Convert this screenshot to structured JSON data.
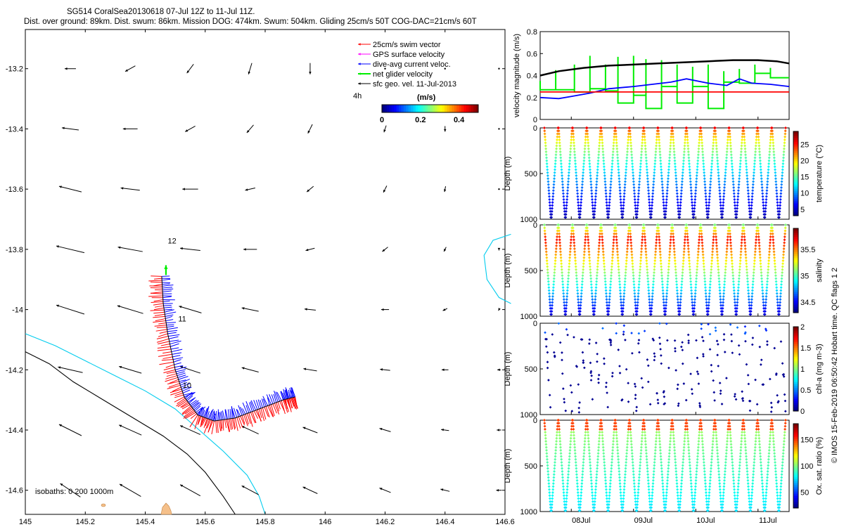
{
  "title": {
    "line1": "SG514 CoralSea20130618 07-Jul 12Z to 11-Jul 11Z.",
    "line2": "Dist. over ground: 89km. Dist. swum: 86km. Mission DOG: 474km. Swum: 504km. Gliding 25cm/s 50T COG-DAC=21cm/s 60T"
  },
  "credit": "© IMOS 15-Feb-2019 06:50:42 Hobart time. QC flags 1  2",
  "colors": {
    "swim": "#ff0000",
    "gps": "#ff00ff",
    "dac": "#0000ff",
    "net": "#00ee00",
    "geo": "#000000",
    "isobath_200": "#00ccee",
    "isobath_1000": "#000000",
    "land": "#f5c08a"
  },
  "chart_data": [
    {
      "type": "scatter",
      "panel": "map",
      "xlim": [
        145,
        146.6
      ],
      "ylim": [
        -14.68,
        -13.07
      ],
      "xticks": [
        145,
        145.2,
        145.4,
        145.6,
        145.8,
        146,
        146.2,
        146.4,
        146.6
      ],
      "yticks": [
        -13.2,
        -13.4,
        -13.6,
        -13.8,
        -14,
        -14.2,
        -14.4,
        -14.6
      ],
      "legend": {
        "placement": "top-right",
        "entries": [
          "25cm/s swim vector",
          "GPS surface velocity",
          "dive-avg current veloc.",
          "net glider velocity",
          "sfc geo. vel. 11-Jul-2013"
        ]
      },
      "time_label": "4h",
      "colorbar": {
        "label": "(m/s)",
        "ticks": [
          "0",
          "0.2",
          "0.4"
        ],
        "range": [
          0,
          0.5
        ]
      },
      "isobath_label": "isobaths: 0   200  1000m",
      "day_labels": [
        {
          "text": "12",
          "lon": 145.475,
          "lat": -13.78
        },
        {
          "text": "11",
          "lon": 145.51,
          "lat": -14.04
        },
        {
          "text": "10",
          "lon": 145.525,
          "lat": -14.26
        }
      ],
      "track": [
        {
          "lon": 145.455,
          "lat": -13.89
        },
        {
          "lon": 145.46,
          "lat": -13.98
        },
        {
          "lon": 145.475,
          "lat": -14.08
        },
        {
          "lon": 145.5,
          "lat": -14.2
        },
        {
          "lon": 145.53,
          "lat": -14.29
        },
        {
          "lon": 145.575,
          "lat": -14.35
        },
        {
          "lon": 145.63,
          "lat": -14.37
        },
        {
          "lon": 145.7,
          "lat": -14.36
        },
        {
          "lon": 145.78,
          "lat": -14.33
        },
        {
          "lon": 145.86,
          "lat": -14.3
        },
        {
          "lon": 145.9,
          "lat": -14.29
        }
      ],
      "geo_vectors": {
        "lons": [
          145.15,
          145.35,
          145.55,
          145.75,
          145.95,
          146.2,
          146.4,
          146.58
        ],
        "lats": [
          -13.2,
          -13.4,
          -13.6,
          -13.8,
          -14,
          -14.2,
          -14.4,
          -14.6
        ],
        "u": [
          [
            -0.1,
            -0.09,
            -0.06,
            -0.03,
            0,
            0,
            0,
            0
          ],
          [
            -0.15,
            -0.13,
            -0.09,
            -0.06,
            -0.04,
            -0.02,
            0,
            0
          ],
          [
            -0.2,
            -0.17,
            -0.14,
            -0.09,
            -0.06,
            -0.03,
            -0.01,
            0
          ],
          [
            -0.25,
            -0.22,
            -0.18,
            -0.12,
            -0.08,
            -0.05,
            -0.02,
            0
          ],
          [
            -0.25,
            -0.23,
            -0.2,
            -0.15,
            -0.1,
            -0.07,
            -0.04,
            -0.01
          ],
          [
            -0.22,
            -0.2,
            -0.18,
            -0.15,
            -0.12,
            -0.09,
            -0.06,
            -0.03
          ],
          [
            -0.2,
            -0.2,
            -0.18,
            -0.15,
            -0.13,
            -0.1,
            -0.07,
            -0.04
          ],
          [
            -0.18,
            -0.19,
            -0.18,
            -0.15,
            -0.13,
            -0.1,
            -0.08,
            -0.05
          ]
        ],
        "v": [
          [
            0,
            -0.05,
            -0.08,
            -0.1,
            -0.1,
            0,
            0,
            0
          ],
          [
            0.02,
            0,
            -0.05,
            -0.07,
            -0.08,
            -0.06,
            -0.05,
            0
          ],
          [
            0.05,
            0.02,
            0,
            -0.02,
            -0.05,
            -0.06,
            -0.05,
            0
          ],
          [
            0.06,
            0.04,
            0.02,
            0,
            -0.02,
            -0.04,
            -0.04,
            -0.02
          ],
          [
            0.08,
            0.07,
            0.06,
            0.03,
            0.01,
            0,
            -0.02,
            -0.02
          ],
          [
            0.05,
            0.06,
            0.06,
            0.04,
            0.02,
            0.01,
            0,
            0
          ],
          [
            0.1,
            0.09,
            0.08,
            0.07,
            0.05,
            0.03,
            0.01,
            0
          ],
          [
            0.12,
            0.11,
            0.1,
            0.08,
            0.06,
            0.04,
            0.02,
            0
          ]
        ]
      },
      "isobath_200": [
        [
          145,
          -14.08
        ],
        [
          145.1,
          -14.12
        ],
        [
          145.2,
          -14.17
        ],
        [
          145.3,
          -14.22
        ],
        [
          145.4,
          -14.27
        ],
        [
          145.5,
          -14.33
        ],
        [
          145.58,
          -14.4
        ],
        [
          145.66,
          -14.47
        ],
        [
          145.74,
          -14.55
        ],
        [
          145.78,
          -14.62
        ],
        [
          145.8,
          -14.68
        ]
      ],
      "isobath_1000": [
        [
          145,
          -14.14
        ],
        [
          145.08,
          -14.18
        ],
        [
          145.16,
          -14.24
        ],
        [
          145.26,
          -14.3
        ],
        [
          145.36,
          -14.36
        ],
        [
          145.46,
          -14.42
        ],
        [
          145.54,
          -14.48
        ],
        [
          145.6,
          -14.54
        ],
        [
          145.66,
          -14.62
        ],
        [
          145.7,
          -14.68
        ]
      ],
      "isobath_200_east": [
        [
          146.62,
          -13.75
        ],
        [
          146.56,
          -13.77
        ],
        [
          146.53,
          -13.82
        ],
        [
          146.54,
          -13.9
        ],
        [
          146.58,
          -13.96
        ],
        [
          146.62,
          -13.98
        ]
      ]
    },
    {
      "type": "line",
      "panel": "velocity",
      "ylabel": "velocity magnitude (m/s)",
      "xlim": [
        7.5,
        11.5
      ],
      "ylim": [
        0,
        0.8
      ],
      "yticks": [
        0,
        0.2,
        0.4,
        0.6,
        0.8
      ],
      "series": [
        {
          "color": "#000000",
          "x": [
            7.5,
            7.8,
            8.2,
            8.6,
            9.0,
            9.4,
            9.8,
            10.2,
            10.6,
            11.0,
            11.3,
            11.5
          ],
          "y": [
            0.4,
            0.44,
            0.47,
            0.49,
            0.5,
            0.51,
            0.52,
            0.53,
            0.54,
            0.54,
            0.53,
            0.51
          ]
        },
        {
          "color": "#0000ff",
          "x": [
            7.5,
            7.8,
            8.0,
            8.3,
            8.6,
            9.0,
            9.3,
            9.6,
            9.85,
            10.2,
            10.5,
            10.7,
            10.9,
            11.2,
            11.5
          ],
          "y": [
            0.2,
            0.19,
            0.21,
            0.24,
            0.28,
            0.3,
            0.32,
            0.34,
            0.37,
            0.33,
            0.31,
            0.37,
            0.33,
            0.32,
            0.3
          ]
        },
        {
          "color": "#ff0000",
          "x": [
            7.5,
            11.5
          ],
          "y": [
            0.25,
            0.25
          ]
        }
      ],
      "net_steps": {
        "color": "#00ee00",
        "x": [
          7.5,
          7.75,
          8.05,
          8.3,
          8.55,
          8.75,
          9.0,
          9.2,
          9.45,
          9.7,
          9.95,
          10.2,
          10.45,
          10.7,
          10.95,
          11.2,
          11.5
        ],
        "y": [
          0.27,
          0.27,
          0.25,
          0.28,
          0.26,
          0.15,
          0.22,
          0.1,
          0.3,
          0.15,
          0.3,
          0.1,
          0.34,
          0.33,
          0.42,
          0.38,
          0.32
        ],
        "peaks": [
          0.35,
          0.45,
          0.5,
          0.58,
          0.5,
          0.57,
          0.58,
          0.55,
          0.54,
          0.5,
          0.48,
          0.5,
          0.44,
          0.46,
          0.5,
          0.47,
          0.45
        ]
      }
    },
    {
      "type": "scatter",
      "panel": "temperature",
      "ylabel": "Depth (m)",
      "clabel": "temperature (°C)",
      "ylim": [
        0,
        1000
      ],
      "yticks": [
        0,
        500,
        1000
      ],
      "cticks": [
        5,
        10,
        15,
        20,
        25
      ],
      "crange": [
        3,
        29
      ],
      "dives": 17,
      "profile": "temp"
    },
    {
      "type": "scatter",
      "panel": "salinity",
      "ylabel": "Depth (m)",
      "clabel": "salinity",
      "ylim": [
        0,
        1000
      ],
      "yticks": [
        0,
        500,
        1000
      ],
      "cticks": [
        34.5,
        35,
        35.5
      ],
      "crange": [
        34.3,
        35.9
      ],
      "dives": 17,
      "profile": "sal"
    },
    {
      "type": "scatter",
      "panel": "chla",
      "ylabel": "Depth (m)",
      "clabel": "chl-a (mg m-3)",
      "ylim": [
        0,
        1000
      ],
      "yticks": [
        0,
        500,
        1000
      ],
      "cticks": [
        0,
        0.5,
        1,
        1.5,
        2
      ],
      "crange": [
        0,
        2
      ],
      "dives": 17,
      "profile": "chl"
    },
    {
      "type": "scatter",
      "panel": "oxygen",
      "ylabel": "Depth (m)",
      "clabel": "Ox. sat. ratio (%)",
      "ylim": [
        0,
        1000
      ],
      "yticks": [
        0,
        500,
        1000
      ],
      "cticks": [
        50,
        100,
        150
      ],
      "crange": [
        20,
        180
      ],
      "dives": 17,
      "profile": "oxy",
      "xticks": [
        "08Jul",
        "09Jul",
        "10Jul",
        "11Jul"
      ]
    }
  ]
}
